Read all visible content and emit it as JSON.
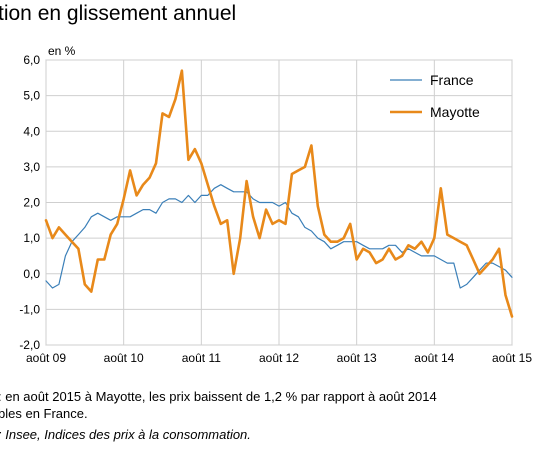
{
  "header": {
    "title": "tion en glissement annuel",
    "unit": "en %"
  },
  "footnotes": {
    "line1": ": en août 2015 à Mayotte, les prix baissent de 1,2 % par rapport à août 2014",
    "line2": "bles en France.",
    "line3": ": Insee, Indices des prix à la consommation."
  },
  "chart_data": {
    "type": "line",
    "title": "tion en glissement annuel",
    "ylabel": "en %",
    "ylim": [
      -2.0,
      6.0
    ],
    "yticks": [
      "6,0",
      "5,0",
      "4,0",
      "3,0",
      "2,0",
      "1,0",
      "0,0",
      "-1,0",
      "-2,0"
    ],
    "ytick_values": [
      6,
      5,
      4,
      3,
      2,
      1,
      0,
      -1,
      -2
    ],
    "xlim": [
      0,
      72
    ],
    "xticks": [
      "août 09",
      "août 10",
      "août 11",
      "août 12",
      "août 13",
      "août 14",
      "août 15"
    ],
    "xtick_values": [
      0,
      12,
      24,
      36,
      48,
      60,
      72
    ],
    "grid": true,
    "legend": "top-right",
    "series": [
      {
        "name": "France",
        "color": "#3a7fb8",
        "x": [
          0,
          1,
          2,
          3,
          4,
          5,
          6,
          7,
          8,
          9,
          10,
          11,
          12,
          13,
          14,
          15,
          16,
          17,
          18,
          19,
          20,
          21,
          22,
          23,
          24,
          25,
          26,
          27,
          28,
          29,
          30,
          31,
          32,
          33,
          34,
          35,
          36,
          37,
          38,
          39,
          40,
          41,
          42,
          43,
          44,
          45,
          46,
          47,
          48,
          49,
          50,
          51,
          52,
          53,
          54,
          55,
          56,
          57,
          58,
          59,
          60,
          61,
          62,
          63,
          64,
          65,
          66,
          67,
          68,
          69,
          70,
          71,
          72
        ],
        "values": [
          -0.2,
          -0.4,
          -0.3,
          0.5,
          0.9,
          1.1,
          1.3,
          1.6,
          1.7,
          1.6,
          1.5,
          1.6,
          1.6,
          1.6,
          1.7,
          1.8,
          1.8,
          1.7,
          2.0,
          2.1,
          2.1,
          2.0,
          2.2,
          2.0,
          2.2,
          2.2,
          2.4,
          2.5,
          2.4,
          2.3,
          2.3,
          2.3,
          2.1,
          2.0,
          2.0,
          2.0,
          1.9,
          2.0,
          1.7,
          1.6,
          1.3,
          1.2,
          1.0,
          0.9,
          0.7,
          0.8,
          0.9,
          0.9,
          0.9,
          0.8,
          0.7,
          0.7,
          0.7,
          0.8,
          0.8,
          0.6,
          0.7,
          0.6,
          0.5,
          0.5,
          0.5,
          0.4,
          0.3,
          0.3,
          -0.4,
          -0.3,
          -0.1,
          0.1,
          0.3,
          0.3,
          0.2,
          0.1,
          -0.1
        ]
      },
      {
        "name": "Mayotte",
        "color": "#e8891a",
        "x": [
          0,
          1,
          2,
          3,
          4,
          5,
          6,
          7,
          8,
          9,
          10,
          11,
          12,
          13,
          14,
          15,
          16,
          17,
          18,
          19,
          20,
          21,
          22,
          23,
          24,
          25,
          26,
          27,
          28,
          29,
          30,
          31,
          32,
          33,
          34,
          35,
          36,
          37,
          38,
          39,
          40,
          41,
          42,
          43,
          44,
          45,
          46,
          47,
          48,
          49,
          50,
          51,
          52,
          53,
          54,
          55,
          56,
          57,
          58,
          59,
          60,
          61,
          62,
          63,
          64,
          65,
          66,
          67,
          68,
          69,
          70,
          71,
          72
        ],
        "values": [
          1.5,
          1.0,
          1.3,
          1.1,
          0.9,
          0.7,
          -0.3,
          -0.5,
          0.4,
          0.4,
          1.1,
          1.4,
          2.1,
          2.9,
          2.2,
          2.5,
          2.7,
          3.1,
          4.5,
          4.4,
          4.9,
          5.7,
          3.2,
          3.5,
          3.1,
          2.5,
          1.9,
          1.4,
          1.5,
          0.0,
          1.0,
          2.6,
          1.6,
          1.0,
          1.8,
          1.4,
          1.5,
          1.4,
          2.8,
          2.9,
          3.0,
          3.6,
          1.9,
          1.1,
          0.9,
          0.9,
          1.0,
          1.4,
          0.4,
          0.7,
          0.6,
          0.3,
          0.4,
          0.7,
          0.4,
          0.5,
          0.8,
          0.7,
          0.9,
          0.6,
          1.0,
          2.4,
          1.1,
          1.0,
          0.9,
          0.8,
          0.4,
          0.0,
          0.2,
          0.4,
          0.7,
          -0.6,
          -1.2
        ]
      }
    ]
  }
}
